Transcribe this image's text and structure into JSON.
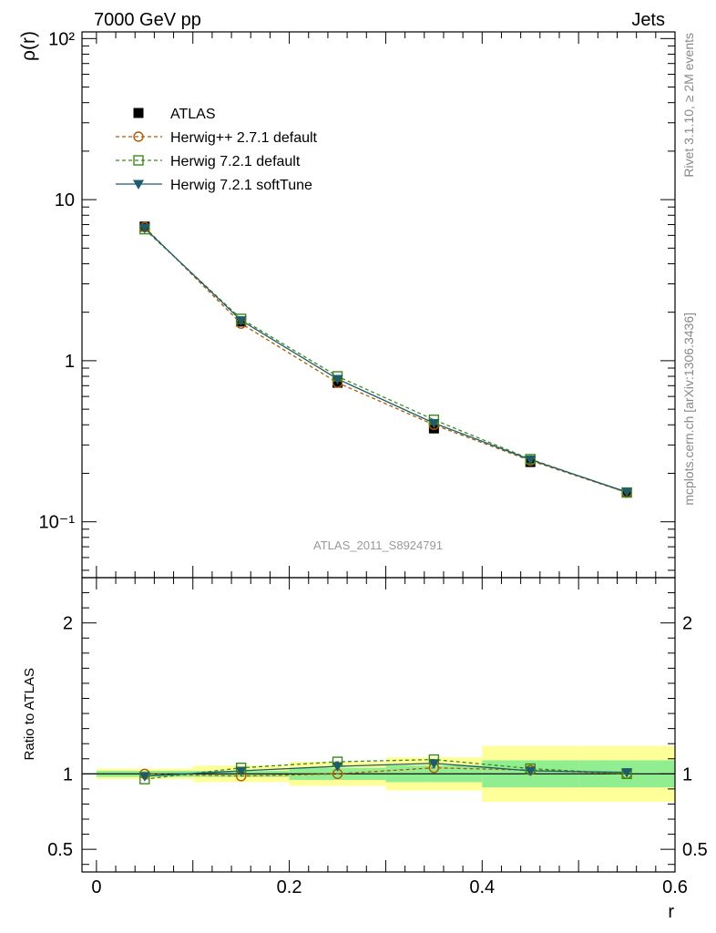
{
  "header": {
    "left": "7000 GeV pp",
    "right": "Jets",
    "side_top": "Rivet 3.1.10, ≥ 2M events",
    "side_bottom": "mcplots.cern.ch [arXiv:1306.3436]",
    "watermark": "ATLAS_2011_S8924791"
  },
  "chart_data": {
    "type": "line",
    "xlabel": "r",
    "xlim": [
      -0.015,
      0.6
    ],
    "x_ticks": [
      "0",
      "0.2",
      "0.4",
      "0.6"
    ],
    "x": [
      0.05,
      0.15,
      0.25,
      0.35,
      0.45,
      0.55
    ],
    "top": {
      "ylabel": "ρ(r)",
      "yscale": "log",
      "ylim": [
        0.045,
        110
      ],
      "y_tick_labels": [
        "10⁻¹",
        "1",
        "10",
        "10²"
      ],
      "series": [
        {
          "name": "ATLAS",
          "style": "marker-square",
          "color": "#000000",
          "values": [
            6.8,
            1.75,
            0.73,
            0.38,
            0.235,
            0.152
          ]
        },
        {
          "name": "Herwig++ 2.7.1 default",
          "style": "dashed-open-circle",
          "color": "#b35900",
          "values": [
            6.75,
            1.7,
            0.73,
            0.4,
            0.24,
            0.152
          ]
        },
        {
          "name": "Herwig 7.2.1 default",
          "style": "dashed-open-square",
          "color": "#3a8a1a",
          "values": [
            6.55,
            1.82,
            0.8,
            0.43,
            0.245,
            0.152
          ]
        },
        {
          "name": "Herwig 7.2.1 softTune",
          "style": "solid-filled-triangle",
          "color": "#1f5c6b",
          "values": [
            6.65,
            1.78,
            0.77,
            0.41,
            0.243,
            0.153
          ]
        }
      ]
    },
    "ratio": {
      "ylabel": "Ratio to ATLAS",
      "ylim": [
        0.35,
        2.3
      ],
      "y_tick_labels": [
        "0.5",
        "1",
        "2"
      ],
      "bands": [
        {
          "x0": 0.0,
          "x1": 0.1,
          "green": [
            0.98,
            1.02
          ],
          "yellow": [
            0.965,
            1.035
          ]
        },
        {
          "x0": 0.1,
          "x1": 0.2,
          "green": [
            0.98,
            1.02
          ],
          "yellow": [
            0.945,
            1.055
          ]
        },
        {
          "x0": 0.2,
          "x1": 0.3,
          "green": [
            0.96,
            1.04
          ],
          "yellow": [
            0.92,
            1.08
          ]
        },
        {
          "x0": 0.3,
          "x1": 0.4,
          "green": [
            0.945,
            1.055
          ],
          "yellow": [
            0.89,
            1.11
          ]
        },
        {
          "x0": 0.4,
          "x1": 0.5,
          "green": [
            0.91,
            1.09
          ],
          "yellow": [
            0.815,
            1.185
          ]
        },
        {
          "x0": 0.5,
          "x1": 0.6,
          "green": [
            0.91,
            1.09
          ],
          "yellow": [
            0.815,
            1.185
          ]
        }
      ],
      "series": [
        {
          "name": "Herwig++ 2.7.1 default",
          "values": [
            1.0,
            0.985,
            1.0,
            1.04,
            1.025,
            1.0
          ]
        },
        {
          "name": "Herwig 7.2.1 default",
          "values": [
            0.965,
            1.04,
            1.08,
            1.095,
            1.035,
            1.0
          ]
        },
        {
          "name": "Herwig 7.2.1 softTune",
          "values": [
            0.985,
            1.02,
            1.05,
            1.07,
            1.02,
            1.01
          ]
        }
      ]
    },
    "colors": {
      "band_green": "#90ee90",
      "band_yellow": "#ffff99",
      "herwig_pp": "#b35900",
      "herwig_7_default": "#3a8a1a",
      "herwig_7_softtune": "#1f5c6b"
    },
    "legend_placement": "top-left"
  }
}
